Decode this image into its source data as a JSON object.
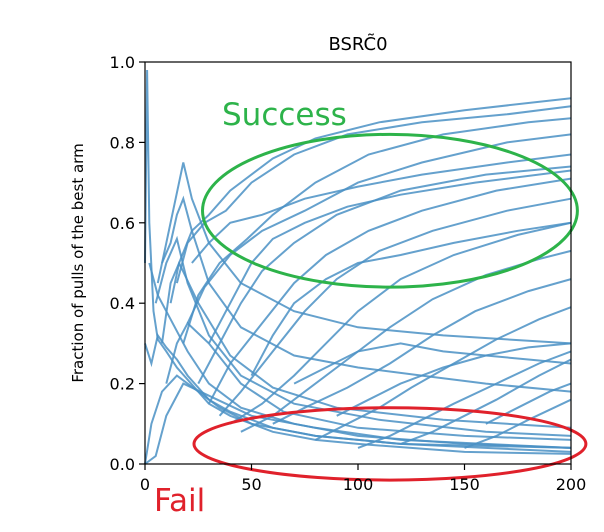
{
  "chart_data": {
    "type": "line",
    "title": "BSRC̃0",
    "xlabel": "",
    "ylabel": "Fraction of pulls of the best arm",
    "xlim": [
      0,
      200
    ],
    "ylim": [
      0.0,
      1.0
    ],
    "xticks": [
      "0",
      "50",
      "100",
      "150",
      "200"
    ],
    "yticks": [
      "0.0",
      "0.2",
      "0.4",
      "0.6",
      "0.8",
      "1.0"
    ],
    "grid": false,
    "line_color": "#4a90c4",
    "annotations": [
      {
        "text": "Success",
        "color": "#2db34a",
        "shape": "ellipse",
        "center": [
          115,
          0.63
        ],
        "radius": [
          88,
          0.19
        ]
      },
      {
        "text": "Fail",
        "color": "#e0212b",
        "shape": "ellipse",
        "center": [
          115,
          0.05
        ],
        "radius": [
          92,
          0.09
        ]
      }
    ],
    "series": [
      {
        "values": [
          [
            0,
            0.5
          ],
          [
            1,
            0.98
          ],
          [
            2,
            0.6
          ],
          [
            4,
            0.38
          ],
          [
            6,
            0.31
          ],
          [
            10,
            0.28
          ],
          [
            15,
            0.24
          ],
          [
            20,
            0.21
          ],
          [
            30,
            0.15
          ],
          [
            40,
            0.12
          ],
          [
            60,
            0.08
          ],
          [
            80,
            0.06
          ],
          [
            100,
            0.05
          ],
          [
            150,
            0.03
          ],
          [
            200,
            0.025
          ]
        ]
      },
      {
        "values": [
          [
            0,
            0.3
          ],
          [
            3,
            0.25
          ],
          [
            6,
            0.32
          ],
          [
            10,
            0.29
          ],
          [
            15,
            0.26
          ],
          [
            20,
            0.22
          ],
          [
            30,
            0.16
          ],
          [
            40,
            0.13
          ],
          [
            60,
            0.09
          ],
          [
            80,
            0.07
          ],
          [
            120,
            0.05
          ],
          [
            200,
            0.03
          ]
        ]
      },
      {
        "values": [
          [
            0,
            0.0
          ],
          [
            3,
            0.1
          ],
          [
            8,
            0.18
          ],
          [
            15,
            0.22
          ],
          [
            25,
            0.18
          ],
          [
            35,
            0.14
          ],
          [
            50,
            0.1
          ],
          [
            80,
            0.07
          ],
          [
            120,
            0.05
          ],
          [
            200,
            0.04
          ]
        ]
      },
      {
        "values": [
          [
            0,
            0.0
          ],
          [
            5,
            0.02
          ],
          [
            10,
            0.12
          ],
          [
            18,
            0.2
          ],
          [
            30,
            0.17
          ],
          [
            50,
            0.12
          ],
          [
            80,
            0.09
          ],
          [
            120,
            0.06
          ],
          [
            200,
            0.04
          ]
        ]
      },
      {
        "values": [
          [
            2,
            0.5
          ],
          [
            6,
            0.42
          ],
          [
            12,
            0.36
          ],
          [
            20,
            0.28
          ],
          [
            30,
            0.2
          ],
          [
            45,
            0.14
          ],
          [
            70,
            0.1
          ],
          [
            100,
            0.07
          ],
          [
            150,
            0.05
          ],
          [
            200,
            0.04
          ]
        ]
      },
      {
        "values": [
          [
            5,
            0.4
          ],
          [
            10,
            0.5
          ],
          [
            15,
            0.56
          ],
          [
            20,
            0.45
          ],
          [
            30,
            0.32
          ],
          [
            45,
            0.22
          ],
          [
            70,
            0.15
          ],
          [
            110,
            0.11
          ],
          [
            160,
            0.08
          ],
          [
            200,
            0.07
          ]
        ]
      },
      {
        "values": [
          [
            8,
            0.3
          ],
          [
            12,
            0.45
          ],
          [
            16,
            0.5
          ],
          [
            25,
            0.4
          ],
          [
            40,
            0.27
          ],
          [
            60,
            0.19
          ],
          [
            90,
            0.14
          ],
          [
            140,
            0.11
          ],
          [
            200,
            0.09
          ]
        ]
      },
      {
        "values": [
          [
            10,
            0.2
          ],
          [
            15,
            0.3
          ],
          [
            20,
            0.35
          ],
          [
            30,
            0.3
          ],
          [
            45,
            0.2
          ],
          [
            65,
            0.13
          ],
          [
            100,
            0.09
          ],
          [
            150,
            0.07
          ],
          [
            200,
            0.06
          ]
        ]
      },
      {
        "values": [
          [
            8,
            0.5
          ],
          [
            12,
            0.55
          ],
          [
            15,
            0.62
          ],
          [
            18,
            0.66
          ],
          [
            22,
            0.58
          ],
          [
            30,
            0.45
          ],
          [
            45,
            0.34
          ],
          [
            70,
            0.27
          ],
          [
            100,
            0.24
          ],
          [
            130,
            0.22
          ],
          [
            160,
            0.2
          ],
          [
            200,
            0.18
          ]
        ]
      },
      {
        "values": [
          [
            6,
            0.45
          ],
          [
            10,
            0.55
          ],
          [
            14,
            0.65
          ],
          [
            18,
            0.75
          ],
          [
            22,
            0.66
          ],
          [
            30,
            0.55
          ],
          [
            45,
            0.45
          ],
          [
            70,
            0.38
          ],
          [
            100,
            0.34
          ],
          [
            140,
            0.32
          ],
          [
            200,
            0.3
          ]
        ]
      },
      {
        "values": [
          [
            12,
            0.4
          ],
          [
            16,
            0.5
          ],
          [
            22,
            0.58
          ],
          [
            30,
            0.62
          ],
          [
            40,
            0.68
          ],
          [
            60,
            0.76
          ],
          [
            80,
            0.81
          ],
          [
            110,
            0.85
          ],
          [
            150,
            0.88
          ],
          [
            200,
            0.91
          ]
        ]
      },
      {
        "values": [
          [
            15,
            0.45
          ],
          [
            20,
            0.55
          ],
          [
            28,
            0.6
          ],
          [
            38,
            0.63
          ],
          [
            50,
            0.7
          ],
          [
            70,
            0.77
          ],
          [
            95,
            0.82
          ],
          [
            130,
            0.85
          ],
          [
            170,
            0.87
          ],
          [
            200,
            0.89
          ]
        ]
      },
      {
        "values": [
          [
            18,
            0.3
          ],
          [
            25,
            0.42
          ],
          [
            35,
            0.5
          ],
          [
            48,
            0.56
          ],
          [
            60,
            0.62
          ],
          [
            80,
            0.7
          ],
          [
            105,
            0.77
          ],
          [
            140,
            0.82
          ],
          [
            180,
            0.85
          ],
          [
            200,
            0.86
          ]
        ]
      },
      {
        "values": [
          [
            20,
            0.35
          ],
          [
            28,
            0.44
          ],
          [
            40,
            0.52
          ],
          [
            55,
            0.58
          ],
          [
            75,
            0.63
          ],
          [
            100,
            0.7
          ],
          [
            130,
            0.75
          ],
          [
            170,
            0.8
          ],
          [
            200,
            0.82
          ]
        ]
      },
      {
        "values": [
          [
            22,
            0.5
          ],
          [
            30,
            0.55
          ],
          [
            40,
            0.6
          ],
          [
            55,
            0.62
          ],
          [
            75,
            0.66
          ],
          [
            100,
            0.69
          ],
          [
            130,
            0.72
          ],
          [
            170,
            0.75
          ],
          [
            200,
            0.77
          ]
        ]
      },
      {
        "values": [
          [
            25,
            0.2
          ],
          [
            35,
            0.3
          ],
          [
            45,
            0.4
          ],
          [
            55,
            0.48
          ],
          [
            70,
            0.55
          ],
          [
            90,
            0.62
          ],
          [
            120,
            0.68
          ],
          [
            160,
            0.72
          ],
          [
            200,
            0.74
          ]
        ]
      },
      {
        "values": [
          [
            30,
            0.15
          ],
          [
            40,
            0.25
          ],
          [
            55,
            0.35
          ],
          [
            70,
            0.45
          ],
          [
            85,
            0.52
          ],
          [
            105,
            0.58
          ],
          [
            130,
            0.63
          ],
          [
            165,
            0.68
          ],
          [
            200,
            0.71
          ]
        ]
      },
      {
        "values": [
          [
            35,
            0.12
          ],
          [
            45,
            0.18
          ],
          [
            60,
            0.28
          ],
          [
            75,
            0.38
          ],
          [
            90,
            0.46
          ],
          [
            110,
            0.53
          ],
          [
            135,
            0.58
          ],
          [
            170,
            0.63
          ],
          [
            200,
            0.66
          ]
        ]
      },
      {
        "values": [
          [
            40,
            0.1
          ],
          [
            55,
            0.15
          ],
          [
            70,
            0.22
          ],
          [
            85,
            0.3
          ],
          [
            100,
            0.38
          ],
          [
            120,
            0.46
          ],
          [
            145,
            0.52
          ],
          [
            175,
            0.57
          ],
          [
            200,
            0.6
          ]
        ]
      },
      {
        "values": [
          [
            30,
            0.3
          ],
          [
            40,
            0.4
          ],
          [
            50,
            0.5
          ],
          [
            60,
            0.56
          ],
          [
            75,
            0.6
          ],
          [
            95,
            0.64
          ],
          [
            120,
            0.67
          ],
          [
            155,
            0.7
          ],
          [
            200,
            0.73
          ]
        ]
      },
      {
        "values": [
          [
            45,
            0.08
          ],
          [
            60,
            0.12
          ],
          [
            75,
            0.18
          ],
          [
            95,
            0.26
          ],
          [
            115,
            0.34
          ],
          [
            135,
            0.41
          ],
          [
            160,
            0.47
          ],
          [
            185,
            0.51
          ],
          [
            200,
            0.53
          ]
        ]
      },
      {
        "values": [
          [
            60,
            0.1
          ],
          [
            75,
            0.14
          ],
          [
            95,
            0.19
          ],
          [
            115,
            0.25
          ],
          [
            135,
            0.32
          ],
          [
            155,
            0.38
          ],
          [
            180,
            0.43
          ],
          [
            200,
            0.46
          ]
        ]
      },
      {
        "values": [
          [
            80,
            0.06
          ],
          [
            95,
            0.1
          ],
          [
            110,
            0.14
          ],
          [
            125,
            0.19
          ],
          [
            145,
            0.25
          ],
          [
            165,
            0.31
          ],
          [
            185,
            0.36
          ],
          [
            200,
            0.39
          ]
        ]
      },
      {
        "values": [
          [
            100,
            0.04
          ],
          [
            115,
            0.07
          ],
          [
            130,
            0.11
          ],
          [
            145,
            0.15
          ],
          [
            165,
            0.2
          ],
          [
            185,
            0.25
          ],
          [
            200,
            0.28
          ]
        ]
      },
      {
        "values": [
          [
            120,
            0.05
          ],
          [
            135,
            0.08
          ],
          [
            150,
            0.12
          ],
          [
            165,
            0.16
          ],
          [
            185,
            0.22
          ],
          [
            200,
            0.26
          ]
        ]
      },
      {
        "values": [
          [
            150,
            0.04
          ],
          [
            165,
            0.07
          ],
          [
            180,
            0.11
          ],
          [
            200,
            0.16
          ]
        ]
      },
      {
        "values": [
          [
            160,
            0.1
          ],
          [
            175,
            0.14
          ],
          [
            190,
            0.18
          ],
          [
            200,
            0.2
          ]
        ]
      },
      {
        "values": [
          [
            90,
            0.12
          ],
          [
            105,
            0.16
          ],
          [
            120,
            0.2
          ],
          [
            140,
            0.24
          ],
          [
            160,
            0.27
          ],
          [
            180,
            0.29
          ],
          [
            200,
            0.3
          ]
        ]
      },
      {
        "values": [
          [
            70,
            0.2
          ],
          [
            85,
            0.24
          ],
          [
            100,
            0.28
          ],
          [
            120,
            0.3
          ],
          [
            140,
            0.28
          ],
          [
            160,
            0.27
          ],
          [
            180,
            0.26
          ],
          [
            200,
            0.25
          ]
        ]
      },
      {
        "values": [
          [
            50,
            0.22
          ],
          [
            60,
            0.32
          ],
          [
            70,
            0.4
          ],
          [
            85,
            0.46
          ],
          [
            100,
            0.5
          ],
          [
            120,
            0.52
          ],
          [
            145,
            0.55
          ],
          [
            175,
            0.58
          ],
          [
            200,
            0.6
          ]
        ]
      }
    ]
  }
}
